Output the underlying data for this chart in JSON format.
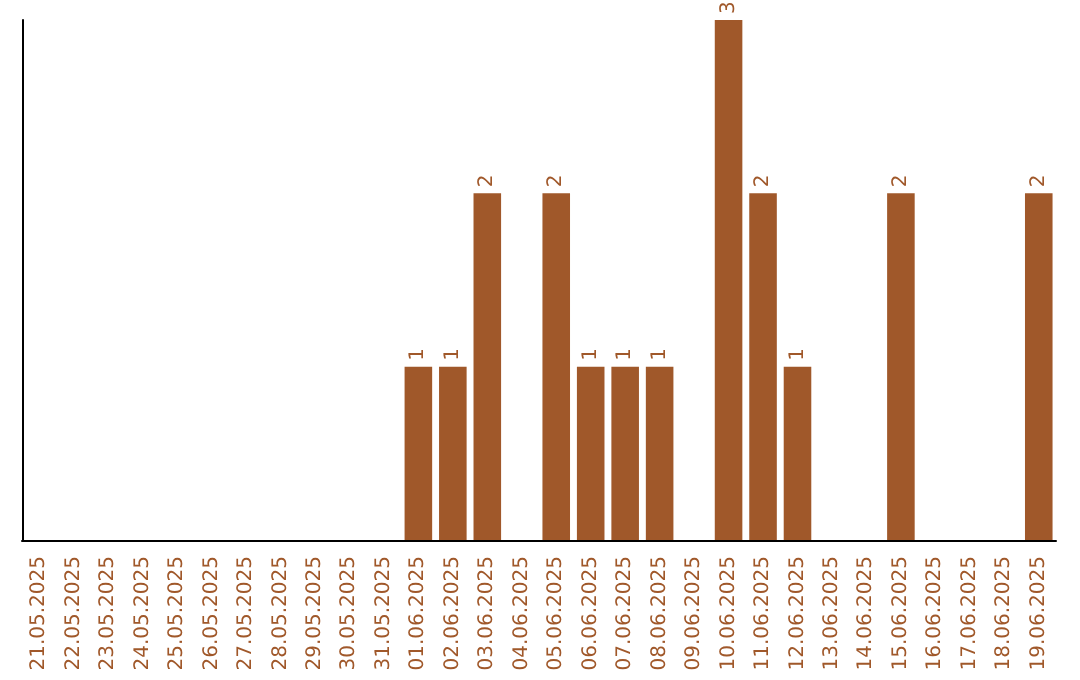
{
  "chart_data": {
    "type": "bar",
    "categories": [
      "21.05.2025",
      "22.05.2025",
      "23.05.2025",
      "24.05.2025",
      "25.05.2025",
      "26.05.2025",
      "27.05.2025",
      "28.05.2025",
      "29.05.2025",
      "30.05.2025",
      "31.05.2025",
      "01.06.2025",
      "02.06.2025",
      "03.06.2025",
      "04.06.2025",
      "05.06.2025",
      "06.06.2025",
      "07.06.2025",
      "08.06.2025",
      "09.06.2025",
      "10.06.2025",
      "11.06.2025",
      "12.06.2025",
      "13.06.2025",
      "14.06.2025",
      "15.06.2025",
      "16.06.2025",
      "17.06.2025",
      "18.06.2025",
      "19.06.2025"
    ],
    "values": [
      0,
      0,
      0,
      0,
      0,
      0,
      0,
      0,
      0,
      0,
      0,
      1,
      1,
      2,
      0,
      2,
      1,
      1,
      1,
      0,
      3,
      2,
      1,
      0,
      0,
      2,
      0,
      0,
      0,
      2
    ],
    "value_labels": [
      null,
      null,
      null,
      null,
      null,
      null,
      null,
      null,
      null,
      null,
      null,
      "1",
      "1",
      "2",
      null,
      "2",
      "1",
      "1",
      "1",
      null,
      "3",
      "2",
      "1",
      null,
      null,
      "2",
      null,
      null,
      null,
      "2"
    ],
    "color": "#a0582a",
    "grid": false,
    "tick_labels": "x"
  }
}
